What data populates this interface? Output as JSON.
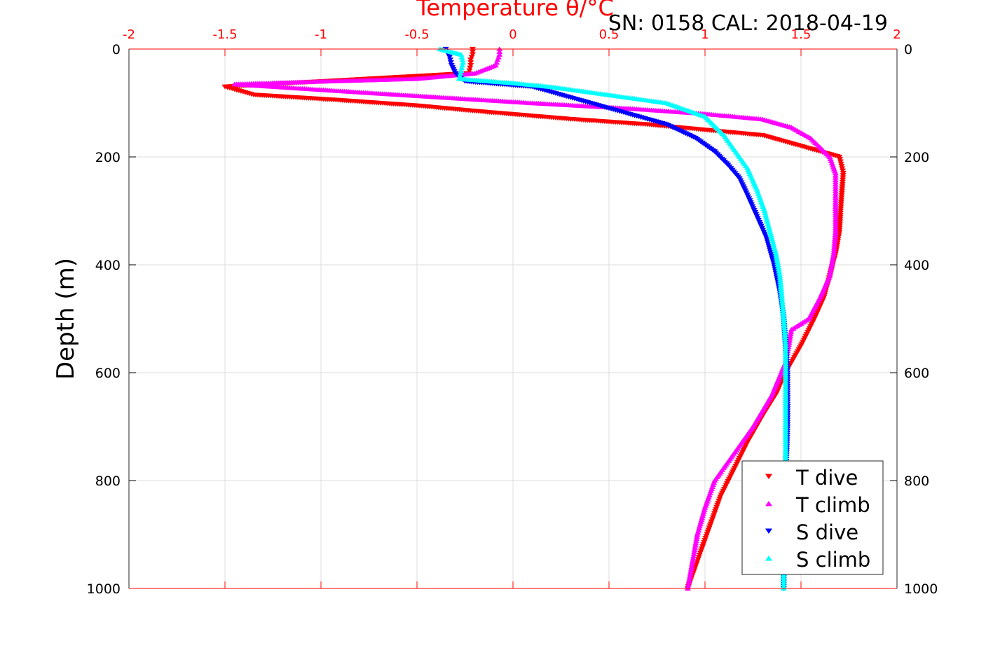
{
  "chart_data": {
    "type": "scatter",
    "title": "Temperature θ/°C",
    "subtitle": "SN: 0158  CAL: 2018-04-19",
    "xlabel": "",
    "ylabel": "Depth (m)",
    "xlim": [
      -2,
      2
    ],
    "ylim": [
      0,
      1000
    ],
    "y_reversed": true,
    "x_axis_position": "top",
    "x_ticks": [
      "-2",
      "-1.5",
      "-1",
      "-0.5",
      "0",
      "0.5",
      "1",
      "1.5",
      "2"
    ],
    "y_ticks_left": [
      "0",
      "200",
      "400",
      "600",
      "800",
      "1000"
    ],
    "y_ticks_right": [
      "0",
      "200",
      "400",
      "600",
      "800",
      "1000"
    ],
    "grid": true,
    "legend_position": "bottom-right",
    "series": [
      {
        "name": "T dive",
        "color": "#ff0000",
        "marker": "triangle-down",
        "x": [
          -0.21,
          -0.21,
          -0.22,
          -0.22,
          -0.23,
          -1.5,
          -1.45,
          -1.35,
          -0.9,
          -0.5,
          -0.2,
          0.3,
          0.7,
          1.0,
          1.3,
          1.55,
          1.7,
          1.72,
          1.71,
          1.7,
          1.68,
          1.65,
          1.62,
          1.57,
          1.5,
          1.42,
          1.37,
          1.3,
          1.22,
          1.15,
          1.08,
          1.03,
          0.98,
          0.94,
          0.91
        ],
        "y": [
          0,
          10,
          20,
          30,
          45,
          70,
          75,
          85,
          95,
          105,
          115,
          130,
          140,
          150,
          160,
          185,
          200,
          230,
          280,
          340,
          380,
          420,
          460,
          500,
          550,
          600,
          640,
          680,
          730,
          780,
          830,
          880,
          930,
          970,
          1000
        ]
      },
      {
        "name": "T climb",
        "color": "#ff00ff",
        "marker": "triangle-up",
        "x": [
          -0.07,
          -0.07,
          -0.08,
          -0.09,
          -0.2,
          -0.5,
          -1.0,
          -1.45,
          -0.8,
          0.1,
          0.6,
          1.0,
          1.3,
          1.45,
          1.55,
          1.65,
          1.68,
          1.68,
          1.68,
          1.67,
          1.65,
          1.6,
          1.54,
          1.45,
          1.42,
          1.35,
          1.25,
          1.15,
          1.05,
          1.0,
          0.96,
          0.93,
          0.91
        ],
        "y": [
          0,
          10,
          20,
          30,
          45,
          55,
          60,
          65,
          80,
          100,
          110,
          120,
          130,
          145,
          165,
          200,
          230,
          280,
          340,
          380,
          420,
          460,
          500,
          520,
          580,
          640,
          700,
          750,
          800,
          850,
          900,
          960,
          1000
        ]
      },
      {
        "name": "S dive",
        "color": "#0000ff",
        "marker": "triangle-down",
        "x": [
          -0.35,
          -0.33,
          -0.32,
          -0.3,
          -0.25,
          0.1,
          0.2,
          0.4,
          0.6,
          0.8,
          0.95,
          1.05,
          1.12,
          1.18,
          1.22,
          1.27,
          1.32,
          1.36,
          1.39,
          1.41,
          1.42,
          1.43,
          1.43,
          1.43,
          1.42,
          1.41,
          1.41
        ],
        "y": [
          0,
          15,
          30,
          45,
          60,
          70,
          80,
          100,
          120,
          140,
          165,
          190,
          215,
          240,
          270,
          310,
          350,
          400,
          450,
          500,
          550,
          600,
          650,
          700,
          800,
          900,
          1000
        ]
      },
      {
        "name": "S climb",
        "color": "#00ffff",
        "marker": "triangle-up",
        "x": [
          -0.38,
          -0.27,
          -0.26,
          -0.27,
          -0.28,
          0.0,
          0.2,
          0.5,
          0.8,
          1.0,
          1.1,
          1.16,
          1.22,
          1.27,
          1.31,
          1.34,
          1.37,
          1.39,
          1.4,
          1.41,
          1.42,
          1.42,
          1.42,
          1.42,
          1.41,
          1.41
        ],
        "y": [
          0,
          10,
          25,
          40,
          55,
          63,
          70,
          85,
          100,
          125,
          160,
          190,
          220,
          260,
          300,
          340,
          380,
          420,
          460,
          500,
          550,
          600,
          700,
          800,
          900,
          1000
        ]
      }
    ]
  }
}
